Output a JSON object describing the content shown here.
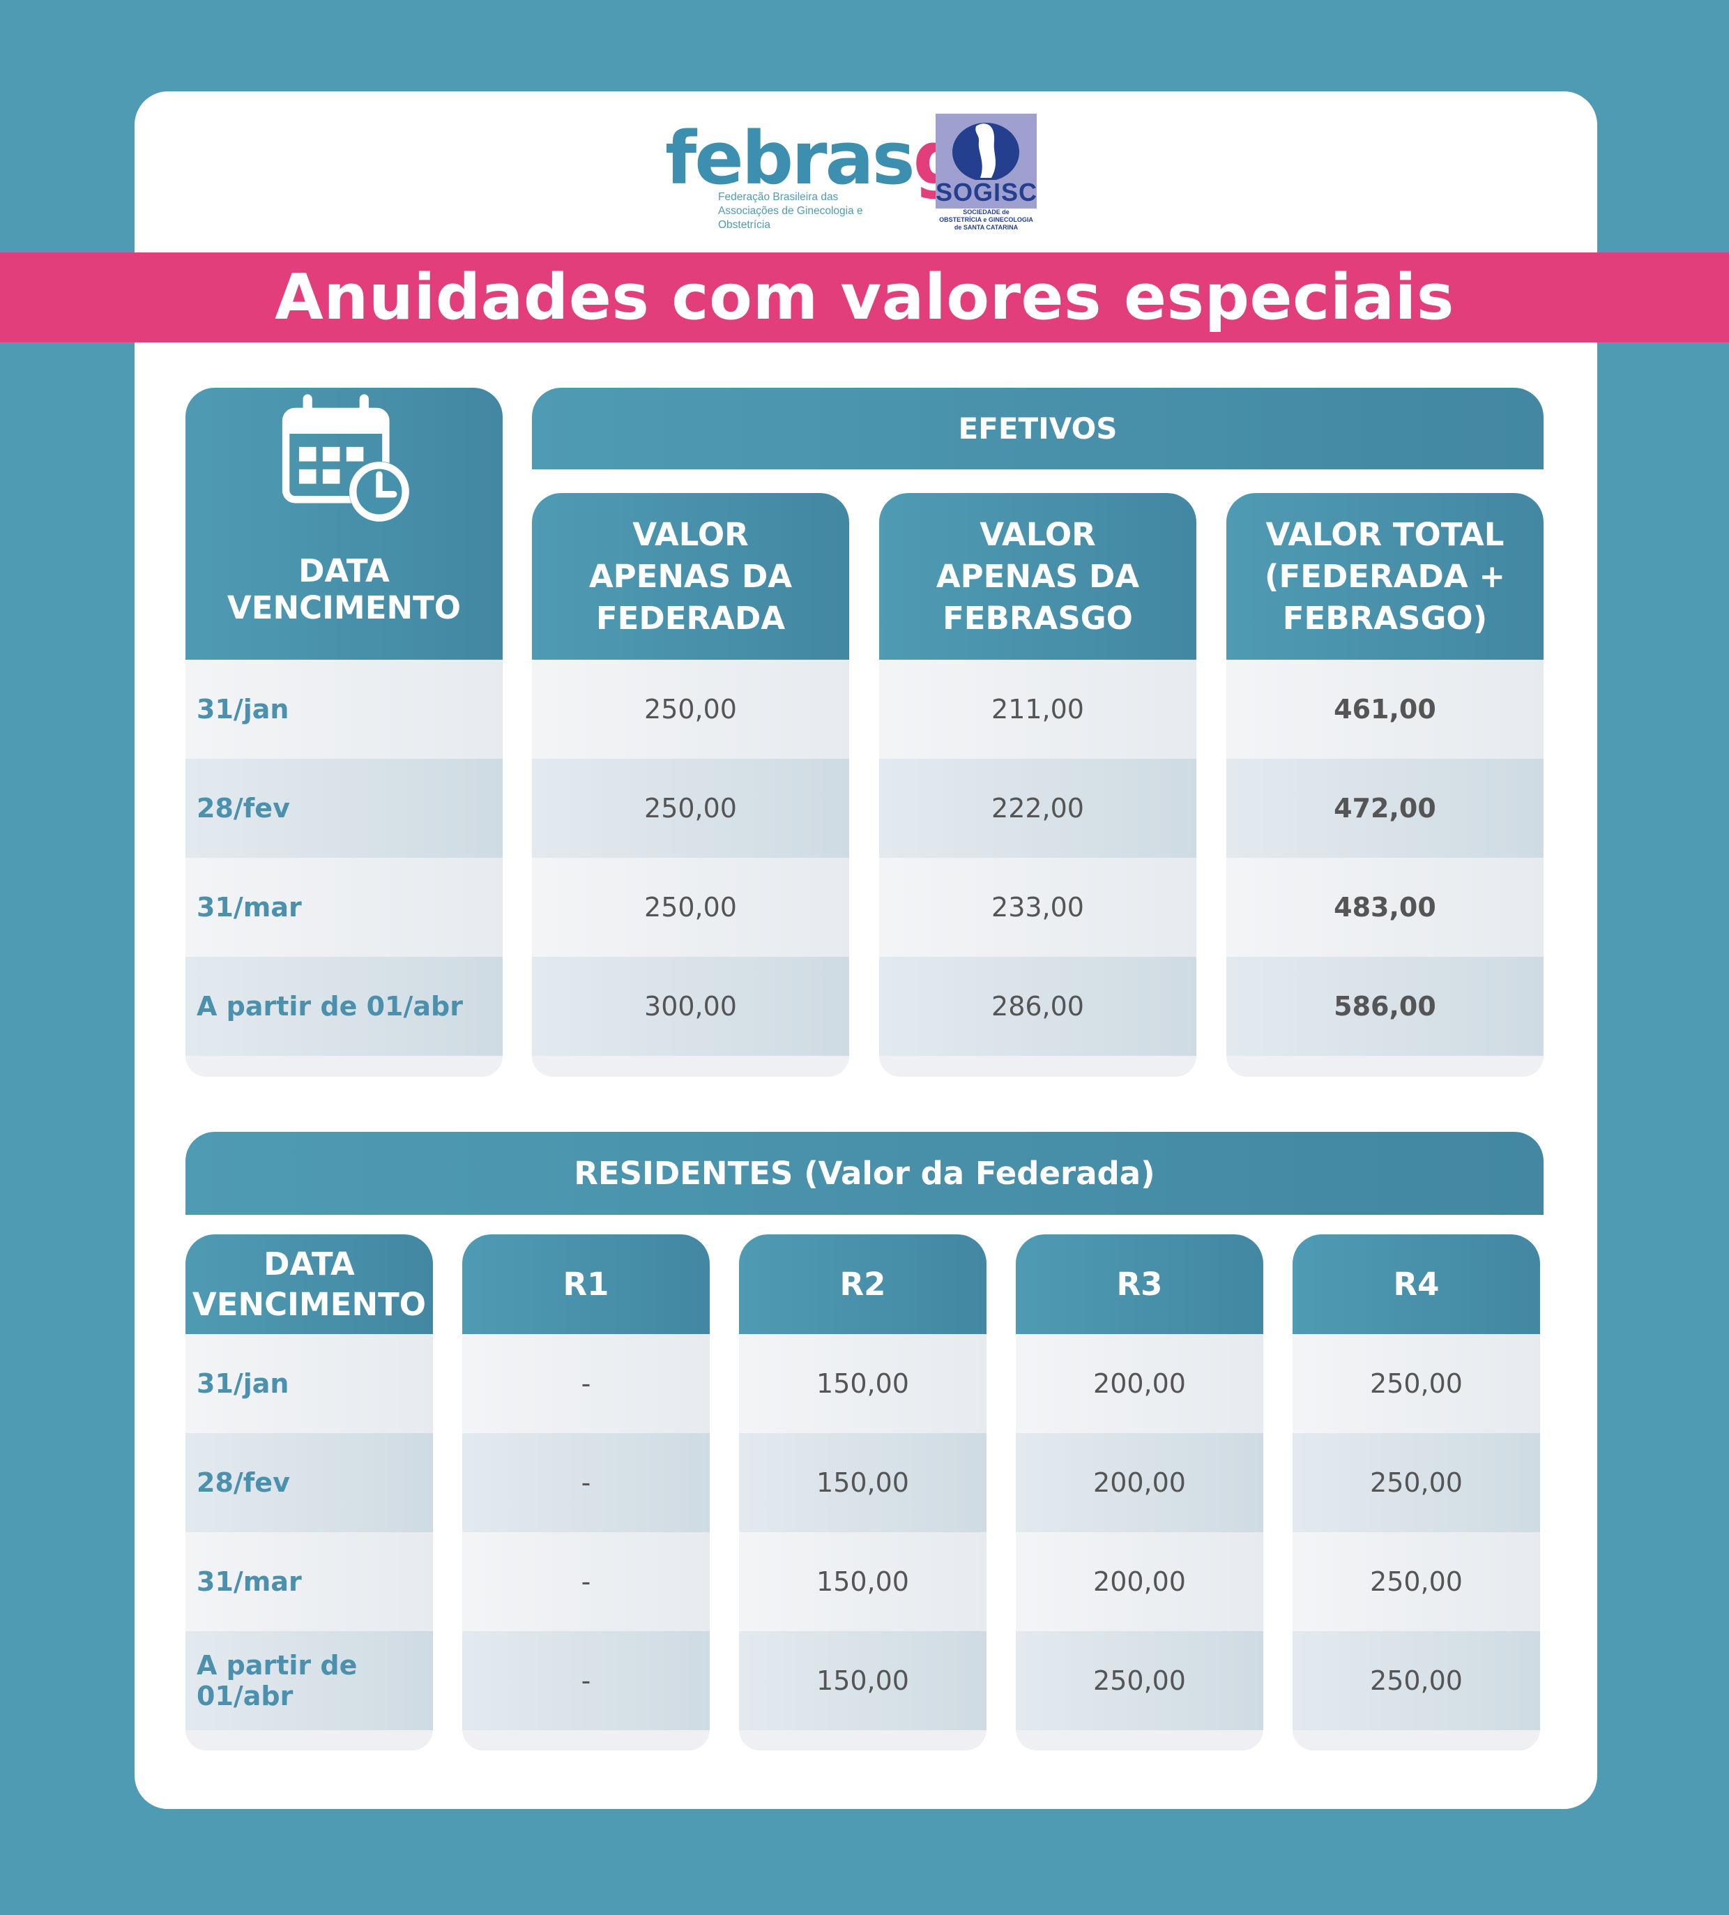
{
  "logos": {
    "febrasgo": {
      "word_main": "febras",
      "word_accent": "go",
      "tagline_1": "Federação Brasileira das",
      "tagline_2": "Associações de Ginecologia e Obstetrícia"
    },
    "sogisc": {
      "name": "SOGISC",
      "tagline_1": "SOCIEDADE de",
      "tagline_2": "OBSTETRÍCIA e GINECOLOGIA",
      "tagline_3": "de SANTA CATARINA"
    }
  },
  "title": "Anuidades com valores especiais",
  "efetivos": {
    "group_header": "EFETIVOS",
    "date_header": "DATA VENCIMENTO",
    "col1_header": [
      "VALOR",
      "APENAS DA",
      "FEDERADA"
    ],
    "col2_header": [
      "VALOR",
      "APENAS DA",
      "FEBRASGO"
    ],
    "col3_header": [
      "VALOR TOTAL",
      "(FEDERADA +",
      "FEBRASGO)"
    ],
    "rows": [
      {
        "date": "31/jan",
        "federada": "250,00",
        "febrasgo": "211,00",
        "total": "461,00"
      },
      {
        "date": "28/fev",
        "federada": "250,00",
        "febrasgo": "222,00",
        "total": "472,00"
      },
      {
        "date": "31/mar",
        "federada": "250,00",
        "febrasgo": "233,00",
        "total": "483,00"
      },
      {
        "date": "A partir de 01/abr",
        "federada": "300,00",
        "febrasgo": "286,00",
        "total": "586,00"
      }
    ]
  },
  "residentes": {
    "group_header": "RESIDENTES (Valor da Federada)",
    "date_header": [
      "DATA",
      "VENCIMENTO"
    ],
    "col_headers": [
      "R1",
      "R2",
      "R3",
      "R4"
    ],
    "rows": [
      {
        "date": "31/jan",
        "r1": "-",
        "r2": "150,00",
        "r3": "200,00",
        "r4": "250,00"
      },
      {
        "date": "28/fev",
        "r1": "-",
        "r2": "150,00",
        "r3": "200,00",
        "r4": "250,00"
      },
      {
        "date": "31/mar",
        "r1": "-",
        "r2": "150,00",
        "r3": "200,00",
        "r4": "250,00"
      },
      {
        "date": "A partir de 01/abr",
        "r1": "-",
        "r2": "150,00",
        "r3": "250,00",
        "r4": "250,00"
      }
    ]
  },
  "icons": {
    "calendar": "calendar-clock-icon"
  },
  "colors": {
    "background": "#4f9bb3",
    "header": "#4387a2",
    "banner": "#e23e7c",
    "date_text": "#4b90ad"
  }
}
